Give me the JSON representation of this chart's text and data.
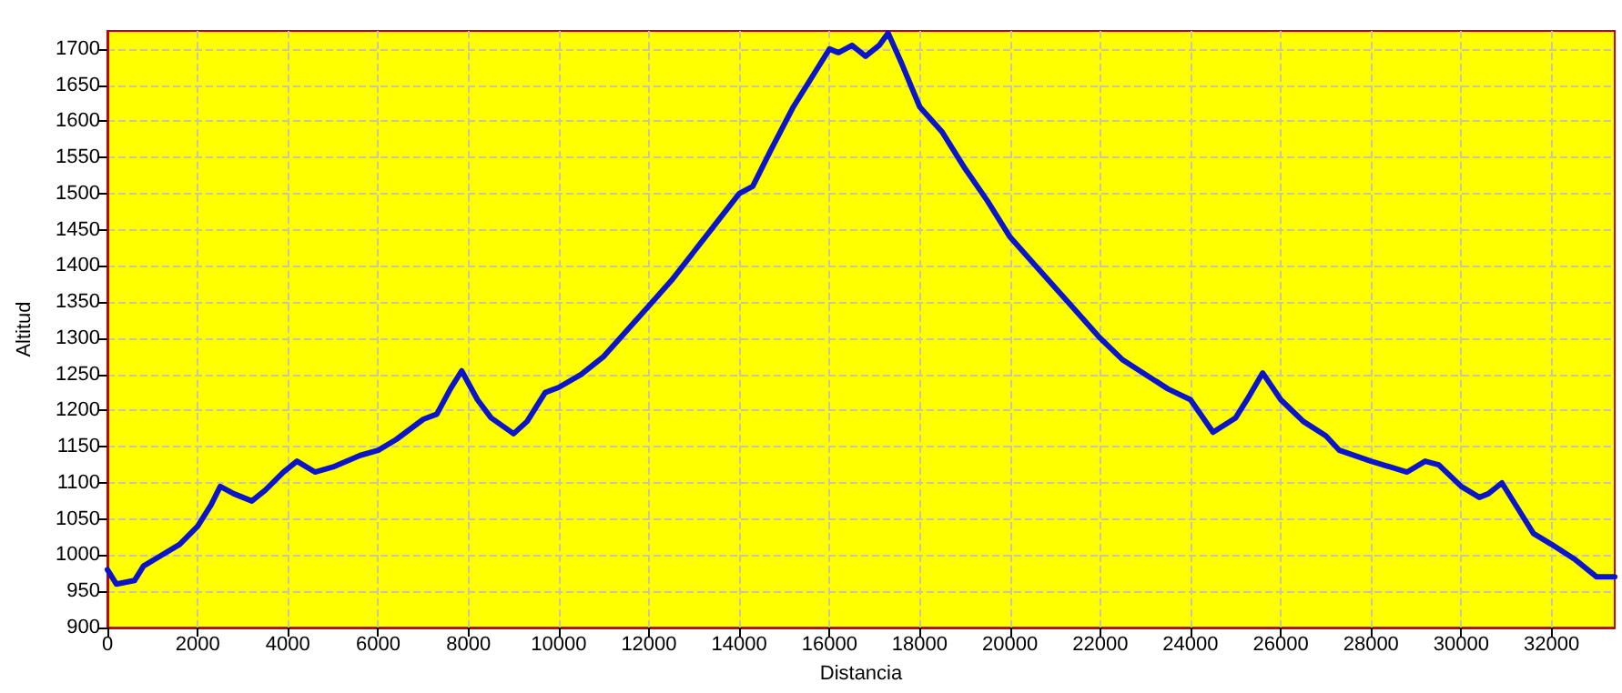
{
  "chart_data": {
    "type": "line",
    "xlabel": "Distancia",
    "ylabel": "Altitud",
    "x": [
      0,
      200,
      600,
      800,
      1200,
      1600,
      2000,
      2300,
      2500,
      2800,
      3200,
      3500,
      3900,
      4200,
      4600,
      5000,
      5600,
      6000,
      6400,
      7000,
      7300,
      7600,
      7850,
      8200,
      8500,
      9000,
      9300,
      9700,
      10000,
      10500,
      11000,
      11500,
      12000,
      12500,
      13000,
      13500,
      14000,
      14300,
      14700,
      15200,
      15700,
      16000,
      16200,
      16500,
      16800,
      17100,
      17300,
      17600,
      18000,
      18500,
      19000,
      19500,
      20000,
      20500,
      21000,
      21500,
      22000,
      22500,
      23000,
      23500,
      24000,
      24500,
      25000,
      25300,
      25600,
      26000,
      26500,
      27000,
      27300,
      28000,
      28800,
      29200,
      29500,
      30000,
      30400,
      30600,
      30900,
      31300,
      31600,
      32000,
      32500,
      33000,
      33400
    ],
    "series": [
      {
        "color": "#0a14c8",
        "values": [
          980,
          960,
          965,
          985,
          1000,
          1015,
          1040,
          1070,
          1095,
          1085,
          1075,
          1090,
          1115,
          1130,
          1115,
          1122,
          1138,
          1145,
          1160,
          1188,
          1195,
          1230,
          1255,
          1215,
          1190,
          1168,
          1185,
          1225,
          1232,
          1250,
          1275,
          1310,
          1345,
          1380,
          1420,
          1460,
          1500,
          1510,
          1560,
          1620,
          1670,
          1700,
          1695,
          1705,
          1690,
          1705,
          1722,
          1680,
          1620,
          1585,
          1535,
          1490,
          1440,
          1405,
          1370,
          1335,
          1300,
          1270,
          1250,
          1230,
          1215,
          1170,
          1190,
          1220,
          1252,
          1215,
          1185,
          1165,
          1145,
          1130,
          1115,
          1130,
          1125,
          1095,
          1080,
          1085,
          1100,
          1060,
          1030,
          1015,
          995,
          970,
          970
        ]
      }
    ],
    "xlim": [
      0,
      33400
    ],
    "ylim": [
      900,
      1725
    ],
    "xticks": [
      0,
      2000,
      4000,
      6000,
      8000,
      10000,
      12000,
      14000,
      16000,
      18000,
      20000,
      22000,
      24000,
      26000,
      28000,
      30000,
      32000
    ],
    "yticks": [
      900,
      950,
      1000,
      1050,
      1100,
      1150,
      1200,
      1250,
      1300,
      1350,
      1400,
      1450,
      1500,
      1550,
      1600,
      1650,
      1700
    ],
    "grid": true,
    "marker": "none",
    "line_style": "solid"
  }
}
